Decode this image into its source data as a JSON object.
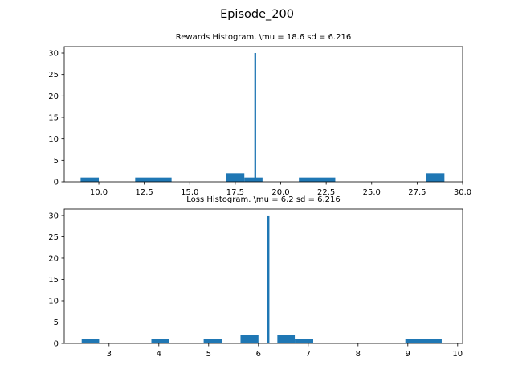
{
  "figure": {
    "title": "Episode_200"
  },
  "chart_data": [
    {
      "type": "bar",
      "title": "Rewards Histogram. \\mu = 18.6 sd = 6.216",
      "xlim": [
        8.1,
        30.0
      ],
      "ylim": [
        0,
        31.5
      ],
      "xticks": [
        "10.0",
        "12.5",
        "15.0",
        "17.5",
        "20.0",
        "22.5",
        "25.0",
        "27.5",
        "30.0"
      ],
      "xtick_values": [
        10.0,
        12.5,
        15.0,
        17.5,
        20.0,
        22.5,
        25.0,
        27.5,
        30.0
      ],
      "yticks": [
        "0",
        "5",
        "10",
        "15",
        "20",
        "25",
        "30"
      ],
      "ytick_values": [
        0,
        5,
        10,
        15,
        20,
        25,
        30
      ],
      "bars": [
        {
          "x0": 9.0,
          "x1": 10.0,
          "value": 1
        },
        {
          "x0": 12.0,
          "x1": 14.0,
          "value": 1
        },
        {
          "x0": 17.0,
          "x1": 18.0,
          "value": 2
        },
        {
          "x0": 18.0,
          "x1": 19.0,
          "value": 1
        },
        {
          "x0": 21.0,
          "x1": 23.0,
          "value": 1
        },
        {
          "x0": 28.0,
          "x1": 29.0,
          "value": 2
        },
        {
          "x0": 18.55,
          "x1": 18.65,
          "value": 30
        }
      ]
    },
    {
      "type": "bar",
      "title": "Loss Histogram. \\mu = 6.2 sd = 6.216",
      "xlim": [
        2.1,
        10.1
      ],
      "ylim": [
        0,
        31.5
      ],
      "xticks": [
        "3",
        "4",
        "5",
        "6",
        "7",
        "8",
        "9",
        "10"
      ],
      "xtick_values": [
        3,
        4,
        5,
        6,
        7,
        8,
        9,
        10
      ],
      "yticks": [
        "0",
        "5",
        "10",
        "15",
        "20",
        "25",
        "30"
      ],
      "ytick_values": [
        0,
        5,
        10,
        15,
        20,
        25,
        30
      ],
      "bars": [
        {
          "x0": 2.45,
          "x1": 2.8,
          "value": 1
        },
        {
          "x0": 3.85,
          "x1": 4.2,
          "value": 1
        },
        {
          "x0": 4.9,
          "x1": 5.27,
          "value": 1
        },
        {
          "x0": 5.64,
          "x1": 6.0,
          "value": 2
        },
        {
          "x0": 6.38,
          "x1": 6.73,
          "value": 2
        },
        {
          "x0": 6.73,
          "x1": 7.1,
          "value": 1
        },
        {
          "x0": 8.95,
          "x1": 9.68,
          "value": 1
        },
        {
          "x0": 6.18,
          "x1": 6.22,
          "value": 30
        }
      ]
    }
  ]
}
